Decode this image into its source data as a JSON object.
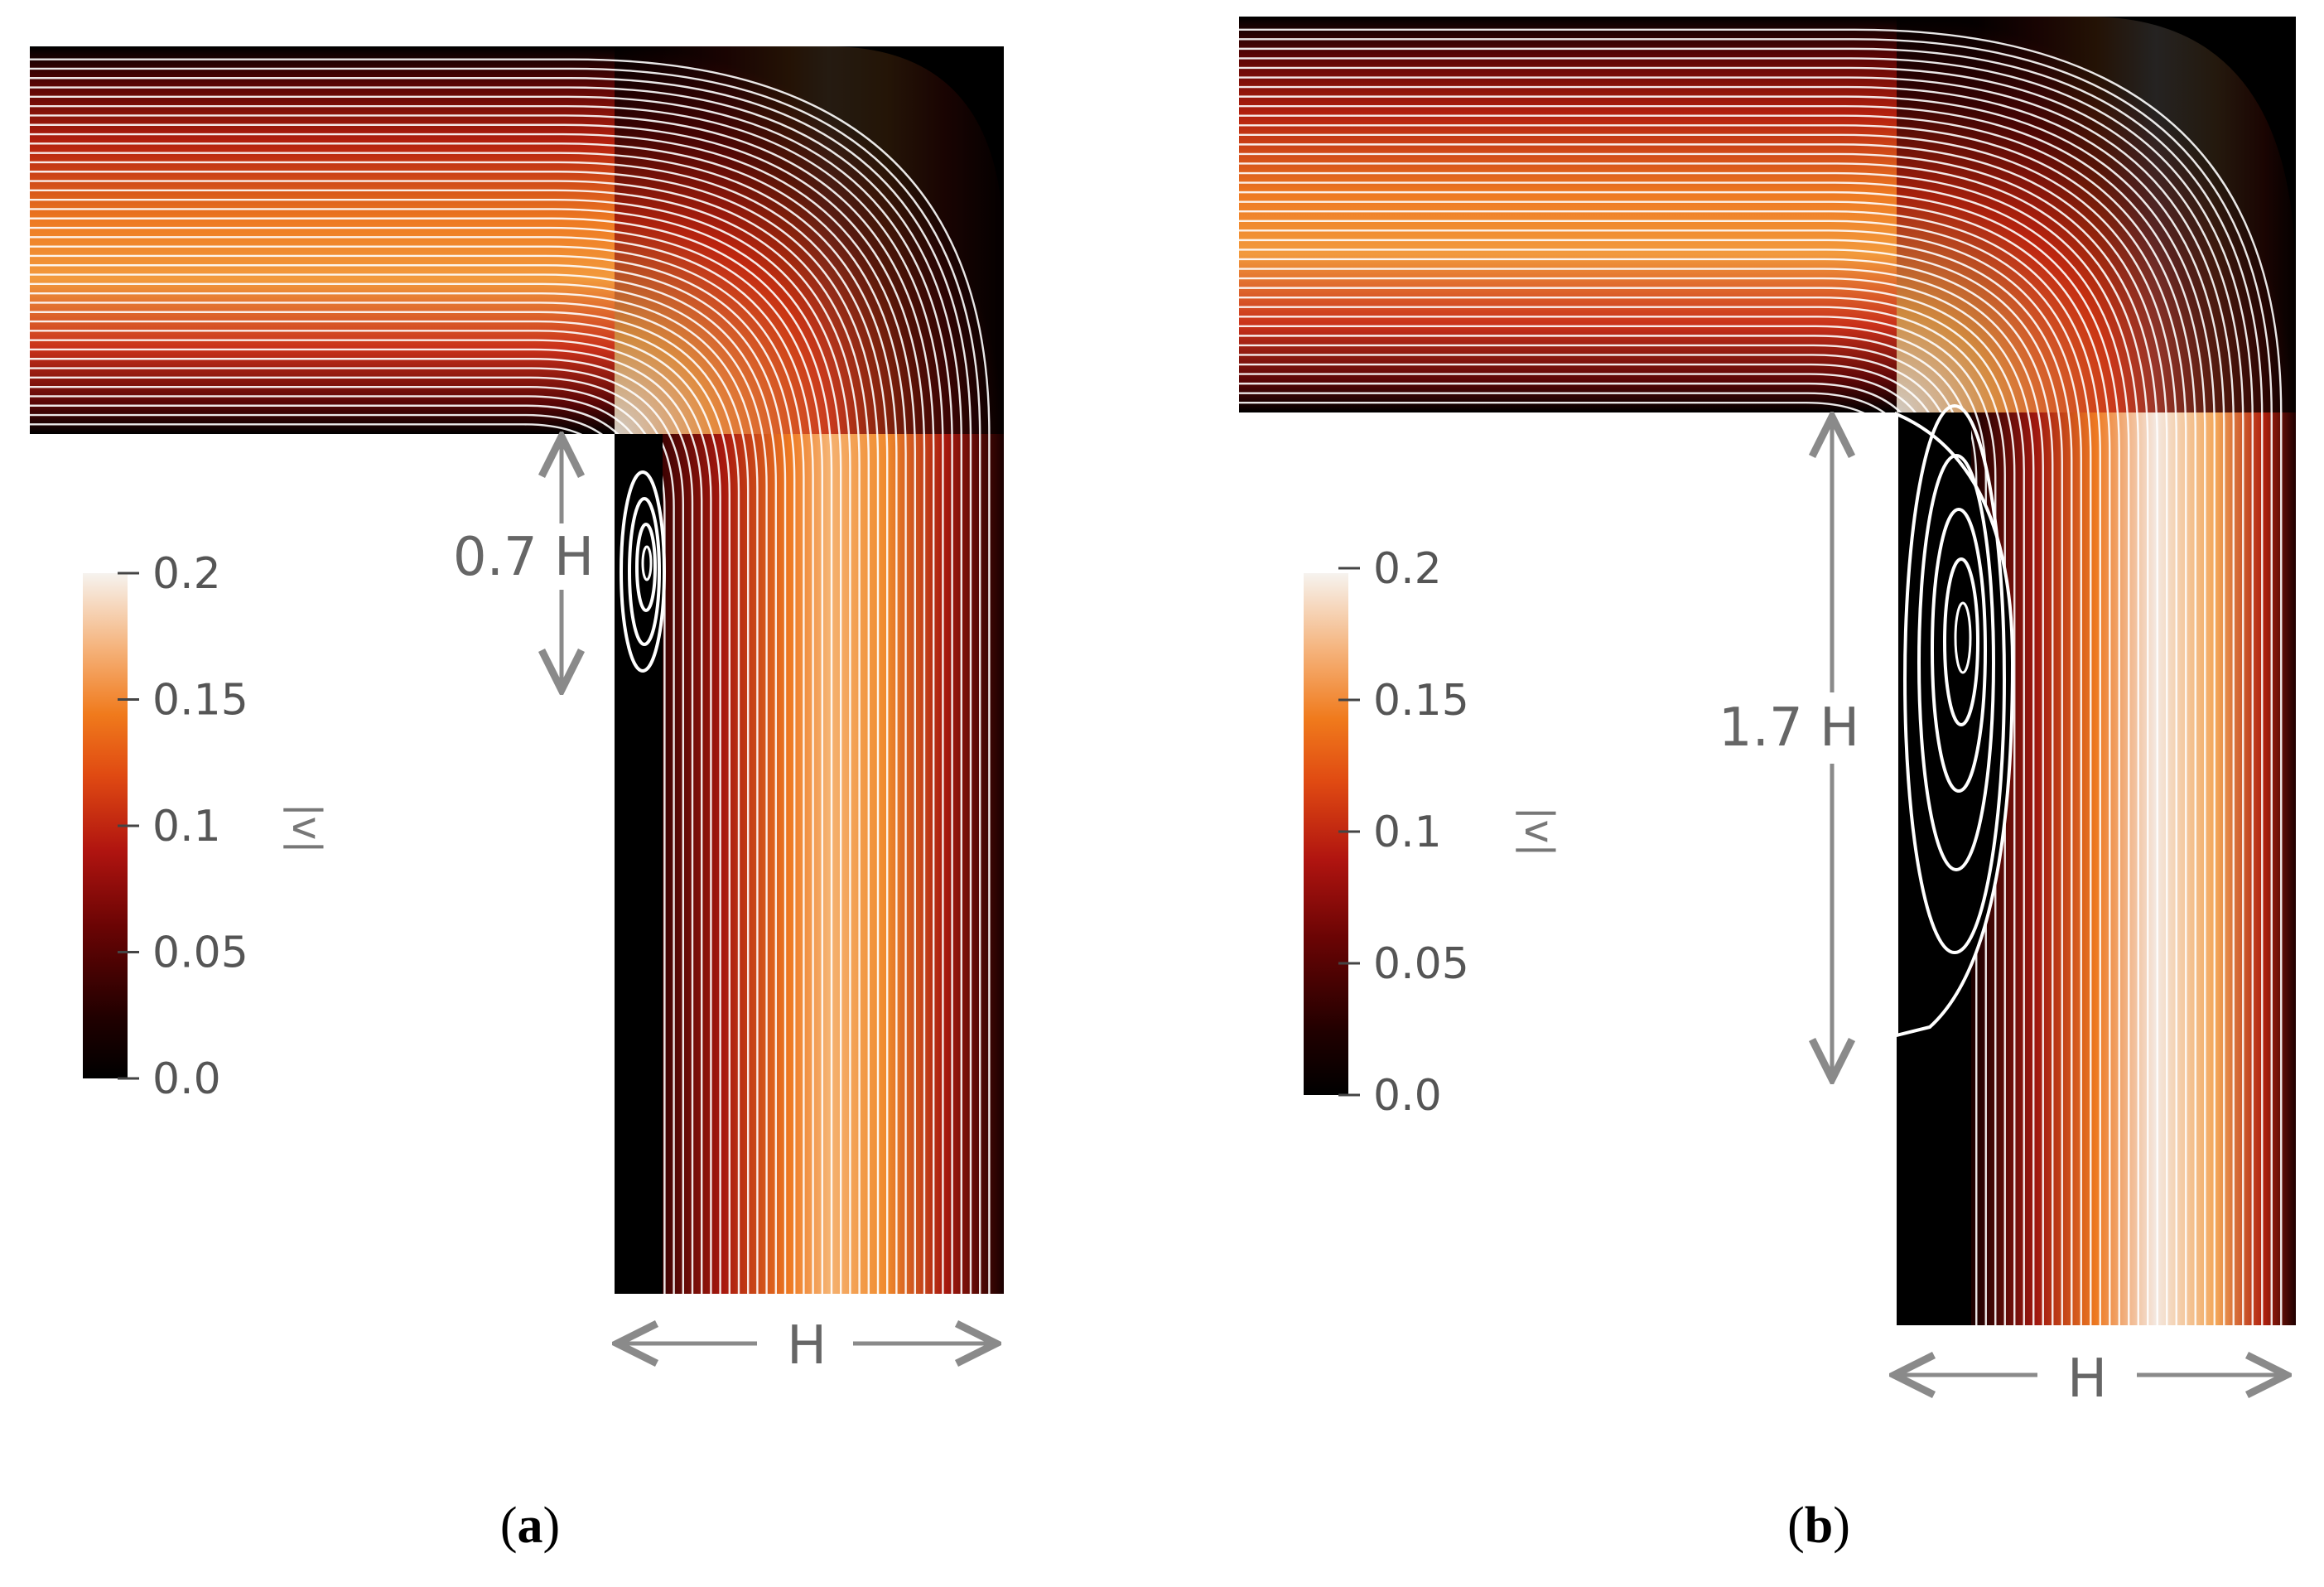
{
  "panels": [
    {
      "id": "a",
      "label_open": "(",
      "label_letter": "a",
      "label_close": ")",
      "recirculation_length": "0.7 H",
      "width_label": "H",
      "colorbar": {
        "title": "|v|",
        "ticks": [
          "0.2",
          "0.15",
          "0.1",
          "0.05",
          "0.0"
        ],
        "min": 0.0,
        "max": 0.2
      },
      "recirculation_ratio": 0.7
    },
    {
      "id": "b",
      "label_open": "(",
      "label_letter": "b",
      "label_close": ")",
      "recirculation_length": "1.7 H",
      "width_label": "H",
      "colorbar": {
        "title": "|v|",
        "ticks": [
          "0.2",
          "0.15",
          "0.1",
          "0.05",
          "0.0"
        ],
        "min": 0.0,
        "max": 0.2
      },
      "recirculation_ratio": 1.7
    }
  ],
  "colormap": {
    "stops": [
      "#000000",
      "#3a0000",
      "#8b0a0a",
      "#cc2a10",
      "#ee6a18",
      "#f39a3a",
      "#f6c79a",
      "#f4f0ea"
    ]
  }
}
